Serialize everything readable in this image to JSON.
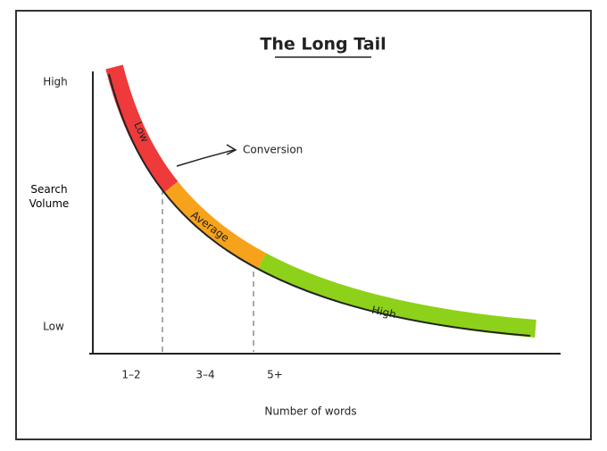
{
  "title": "The Long Tail",
  "y_axis": {
    "label": "Search Volume",
    "high": "High",
    "low": "Low"
  },
  "x_axis": {
    "label": "Number of words",
    "groups": [
      "1–2",
      "3–4",
      "5+"
    ]
  },
  "segments": [
    {
      "label": "Low",
      "color": "#ee3a3a"
    },
    {
      "label": "Average",
      "color": "#f7a21b"
    },
    {
      "label": "High",
      "color": "#8ed11a"
    }
  ],
  "annotation": "Conversion"
}
